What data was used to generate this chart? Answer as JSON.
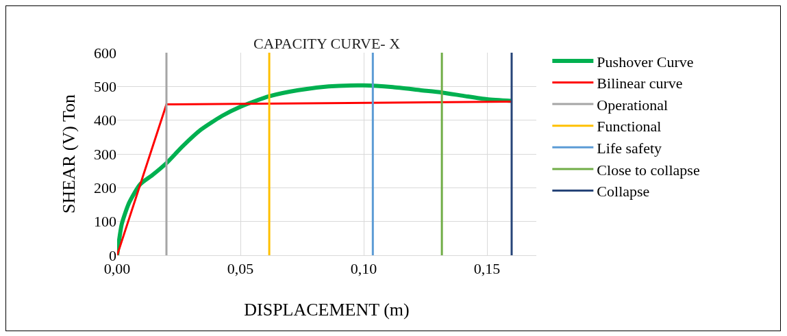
{
  "chart_data": {
    "type": "line",
    "title": "CAPACITY CURVE- X",
    "xlabel": "DISPLACEMENT (m)",
    "ylabel": "SHEAR (V) Ton",
    "series": [
      {
        "name": "Pushover Curve",
        "color": "#00b050",
        "x": [
          0,
          0.0019,
          0.0049,
          0.0093,
          0.0142,
          0.02,
          0.0266,
          0.034,
          0.0426,
          0.05,
          0.0617,
          0.0735,
          0.0858,
          0.1,
          0.1118,
          0.1229,
          0.1318,
          0.1414,
          0.15,
          0.16
        ],
        "values": [
          0,
          93,
          156,
          210,
          237,
          273,
          323,
          372,
          413,
          440,
          471,
          489,
          500,
          503,
          498,
          489,
          482,
          471,
          462,
          457
        ]
      },
      {
        "name": "Bilinear curve",
        "color": "#ff0000",
        "x": [
          0,
          0.02,
          0.16
        ],
        "values": [
          0,
          447,
          455
        ]
      },
      {
        "name": "Operational",
        "color": "#a5a5a5",
        "x": [
          0.02,
          0.02
        ],
        "values": [
          0,
          600
        ]
      },
      {
        "name": "Functional",
        "color": "#ffc000",
        "x": [
          0.0617,
          0.0617
        ],
        "values": [
          0,
          600
        ]
      },
      {
        "name": "Life safety",
        "color": "#5b9bd5",
        "x": [
          0.1037,
          0.1037
        ],
        "values": [
          0,
          600
        ]
      },
      {
        "name": "Close to collapse",
        "color": "#70ad47",
        "x": [
          0.1317,
          0.1317
        ],
        "values": [
          0,
          600
        ]
      },
      {
        "name": "Collapse",
        "color": "#264478",
        "x": [
          0.16,
          0.16
        ],
        "values": [
          0,
          600
        ]
      }
    ],
    "xlim": [
      0,
      0.17
    ],
    "xticks": [
      {
        "value": 0,
        "label": "0,00"
      },
      {
        "value": 0.05,
        "label": "0,05"
      },
      {
        "value": 0.1,
        "label": "0,10"
      },
      {
        "value": 0.15,
        "label": "0,15"
      }
    ],
    "ylim": [
      0,
      600
    ],
    "yticks": [
      0,
      100,
      200,
      300,
      400,
      500,
      600
    ],
    "grid": true,
    "legend": "right",
    "marker": "none",
    "line_style": "solid"
  }
}
